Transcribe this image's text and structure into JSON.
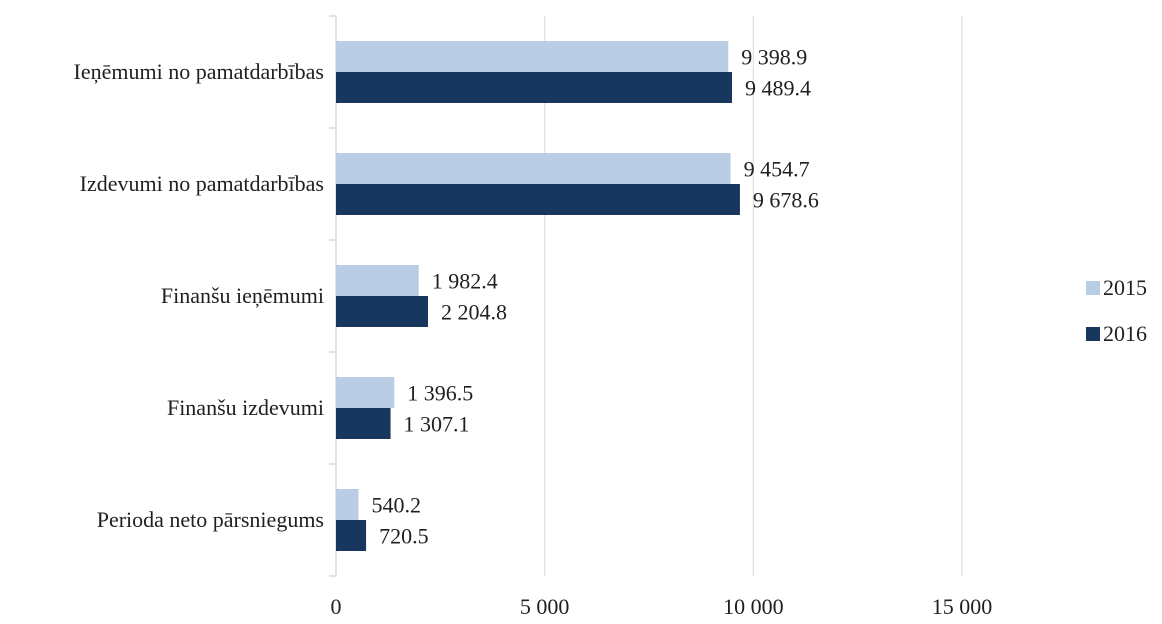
{
  "chart_data": {
    "type": "bar",
    "orientation": "horizontal",
    "title": "",
    "xlabel": "",
    "ylabel": "",
    "categories": [
      "Ieņēmumi no pamatdarbības",
      "Izdevumi no pamatdarbības",
      "Finanšu ieņēmumi",
      "Finanšu izdevumi",
      "Perioda neto pārsniegums"
    ],
    "series": [
      {
        "name": "2015",
        "color": "#b9cde5",
        "values": [
          9398.9,
          9454.7,
          1982.4,
          1396.5,
          540.2
        ],
        "labels": [
          "9 398.9",
          "9 454.7",
          "1 982.4",
          "1 396.5",
          "540.2"
        ]
      },
      {
        "name": "2016",
        "color": "#17375e",
        "values": [
          9489.4,
          9678.6,
          2204.8,
          1307.1,
          720.5
        ],
        "labels": [
          "9 489.4",
          "9 678.6",
          "2 204.8",
          "1 307.1",
          "720.5"
        ]
      }
    ],
    "xlim": [
      0,
      15000
    ],
    "xticks": [
      0,
      5000,
      10000,
      15000
    ],
    "xtick_labels": [
      "0",
      "5 000",
      "10 000",
      "15 000"
    ],
    "grid": true,
    "gridline_color": "#d9d9d9",
    "legend_position": "right"
  }
}
